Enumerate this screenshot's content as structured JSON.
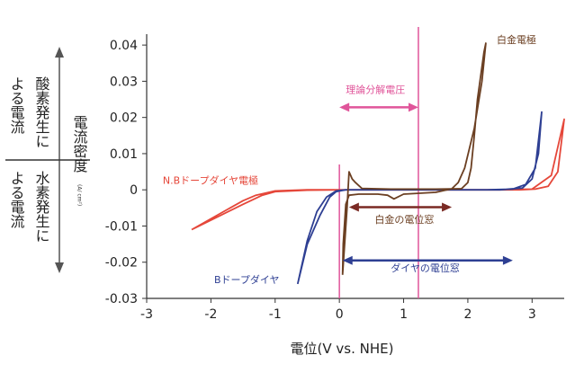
{
  "chart_data": {
    "type": "line",
    "xlabel": "電位(V vs. NHE)",
    "ylabel": "電流密度",
    "ylabel_unit": "(A/ cm²)",
    "xlim": [
      -3,
      3.5
    ],
    "ylim": [
      -0.03,
      0.045
    ],
    "x_ticks": [
      -3,
      -2,
      -1,
      0,
      1,
      2,
      3
    ],
    "y_ticks": [
      -0.03,
      -0.02,
      -0.01,
      0,
      0.01,
      0.02,
      0.03,
      0.04
    ],
    "x_tick_labels": [
      "-3",
      "-2",
      "-1",
      "0",
      "1",
      "2",
      "3"
    ],
    "y_tick_labels": [
      "-0.03",
      "-0.02",
      "-0.01",
      "0",
      "0.01",
      "0.02",
      "0.03",
      "0.04"
    ],
    "side_labels": {
      "upper_col1": "よる電流",
      "upper_col2": "酸素発生に",
      "lower_col1": "よる電流",
      "lower_col2": "水素発生に"
    },
    "series": [
      {
        "name": "N.Bドープダイヤ電極",
        "color": "#e5473a",
        "x": [
          -2.3,
          -1.9,
          -1.5,
          -1.2,
          -1.0,
          -0.5,
          0,
          1,
          2,
          2.8,
          3.05,
          3.25,
          3.4,
          3.5,
          3.3,
          3.0,
          2.5,
          1.5,
          0.5,
          -0.5,
          -1.0,
          -1.3,
          -1.5,
          -1.7,
          -2.0,
          -2.3
        ],
        "y": [
          -0.011,
          -0.0075,
          -0.004,
          -0.0015,
          -0.0005,
          -0.0001,
          0,
          0,
          0,
          0,
          0.0002,
          0.001,
          0.005,
          0.0195,
          0.004,
          0.0002,
          0,
          0,
          0,
          0,
          -0.0003,
          -0.0015,
          -0.003,
          -0.005,
          -0.008,
          -0.011
        ]
      },
      {
        "name": "Bドープダイヤ",
        "color": "#2e3f93",
        "x": [
          -0.65,
          -0.5,
          -0.3,
          -0.15,
          -0.05,
          0.1,
          0.5,
          1.5,
          2.5,
          2.85,
          3.0,
          3.1,
          3.15,
          3.05,
          2.9,
          2.7,
          2.3,
          1.5,
          0.5,
          0.1,
          -0.05,
          -0.2,
          -0.35,
          -0.5,
          -0.65
        ],
        "y": [
          -0.026,
          -0.015,
          -0.007,
          -0.002,
          -0.0005,
          0,
          0,
          0,
          0,
          0.0005,
          0.003,
          0.01,
          0.0215,
          0.006,
          0.0015,
          0.0002,
          0,
          0,
          0,
          0,
          -0.0003,
          -0.002,
          -0.006,
          -0.014,
          -0.026
        ]
      },
      {
        "name": "白金電極",
        "color": "#6b3f22",
        "x": [
          0.05,
          0.12,
          0.15,
          0.2,
          0.25,
          0.35,
          0.8,
          1.5,
          1.9,
          2.0,
          2.05,
          2.1,
          2.15,
          2.25,
          2.28,
          2.22,
          2.1,
          1.95,
          1.85,
          1.75,
          1.5,
          1.0,
          0.85,
          0.75,
          0.6,
          0.3,
          0.15,
          0.1,
          0.06,
          0.05
        ],
        "y": [
          -0.0235,
          -0.005,
          0.005,
          0.003,
          0.002,
          0.0004,
          0.0002,
          0.0002,
          0.0003,
          0.002,
          0.006,
          0.015,
          0.025,
          0.038,
          0.0405,
          0.03,
          0.017,
          0.006,
          0.002,
          0.0003,
          -0.0007,
          -0.0012,
          -0.0025,
          -0.0015,
          -0.0012,
          -0.0012,
          -0.0015,
          -0.004,
          -0.015,
          -0.0235
        ]
      }
    ],
    "vline": {
      "x": 1.23,
      "color": "#e0559a",
      "label": "理論分解電圧"
    },
    "ranges": [
      {
        "name": "theoretical-voltage",
        "label": "理論分解電圧",
        "x1": 0.0,
        "x2": 1.23,
        "y": 0.0228,
        "color": "#e0559a"
      },
      {
        "name": "pt-window",
        "label": "白金の電位窓",
        "x1": 0.15,
        "x2": 1.75,
        "y": -0.0048,
        "color": "#7a2a24"
      },
      {
        "name": "diamond-window",
        "label": "ダイヤの電位窓",
        "x1": 0.05,
        "x2": 2.7,
        "y": -0.0195,
        "color": "#2e3f93"
      }
    ],
    "curve_labels": [
      {
        "name": "nb-diamond",
        "text": "N.Bドープダイヤ電極",
        "x": -2.75,
        "y": 0.0017,
        "color": "#e5473a"
      },
      {
        "name": "b-diamond",
        "text": "Bドープダイヤ",
        "x": -1.95,
        "y": -0.0258,
        "color": "#2e3f93"
      },
      {
        "name": "platinum",
        "text": "白金電極",
        "x": 2.45,
        "y": 0.0405,
        "color": "#6b3f22"
      },
      {
        "name": "pt-window-label",
        "text": "白金の電位窓",
        "x": 0.55,
        "y": -0.0092,
        "color": "#6b3f22"
      },
      {
        "name": "diamond-window-label",
        "text": "ダイヤの電位窓",
        "x": 0.8,
        "y": -0.0225,
        "color": "#2e3f93"
      },
      {
        "name": "theoretical-label",
        "text": "理論分解電圧",
        "x": 0.1,
        "y": 0.0268,
        "color": "#e0559a"
      }
    ],
    "zero_vline_color": "#e0559a",
    "axis_color": "#333333"
  }
}
